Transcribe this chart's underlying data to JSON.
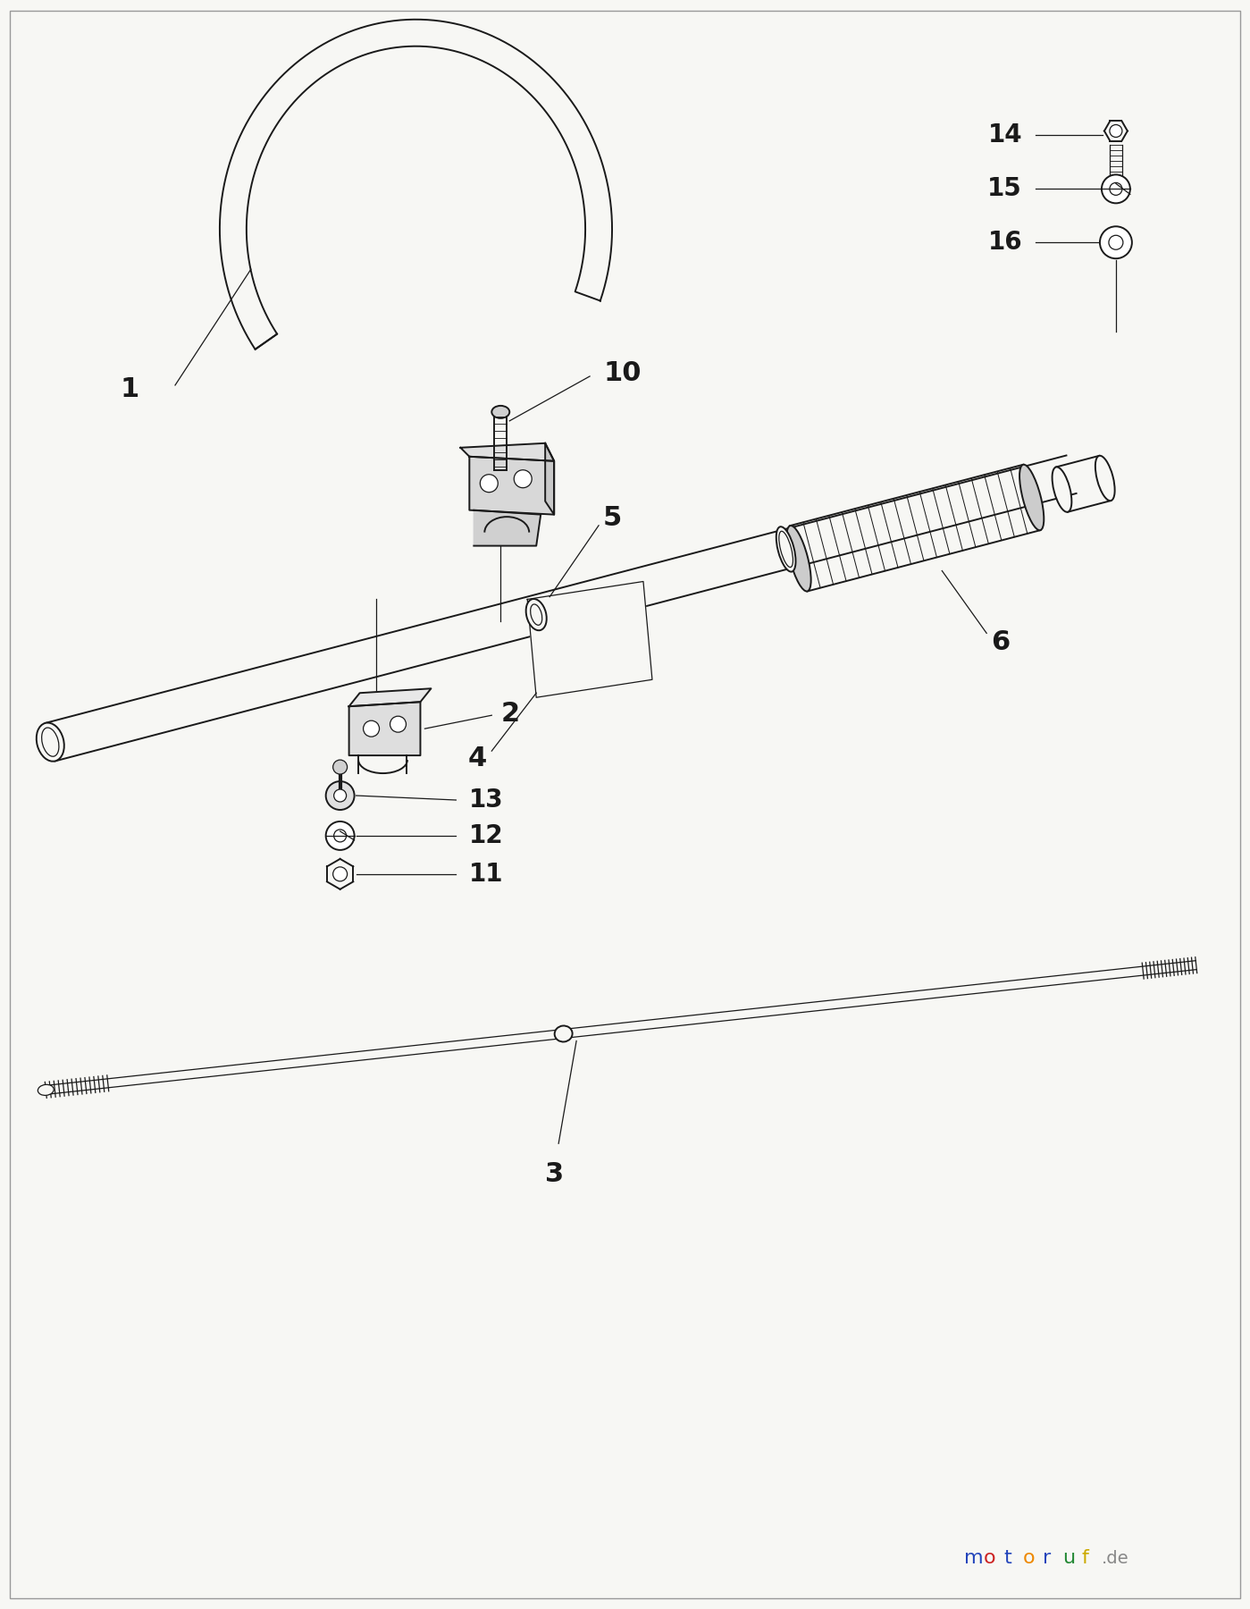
{
  "bg_color": "#f7f7f4",
  "line_color": "#1a1a1a",
  "lw_thick": 2.0,
  "lw_med": 1.4,
  "lw_thin": 0.9,
  "watermark_letters": [
    "m",
    "o",
    "t",
    "o",
    "r",
    "u",
    "f"
  ],
  "watermark_colors": [
    "#2244bb",
    "#cc2222",
    "#2244bb",
    "#ee8800",
    "#2244bb",
    "#228833",
    "#ccaa00"
  ],
  "watermark_suffix": ".de",
  "watermark_suffix_color": "#888888"
}
